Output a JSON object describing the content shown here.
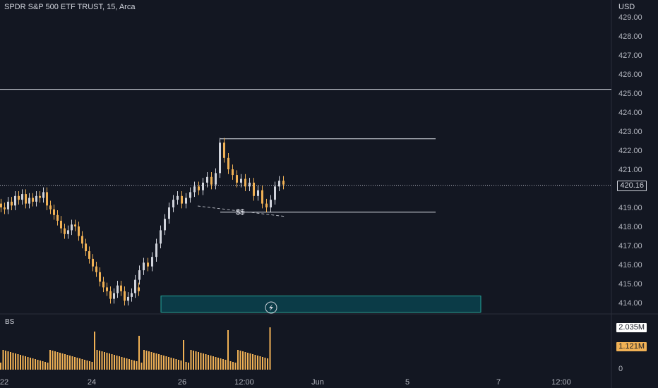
{
  "header": {
    "symbol_line": "SPDR S&P 500 ETF TRUST, 15, Arca",
    "currency": "USD"
  },
  "price_axis": {
    "ticks": [
      "429.00",
      "428.00",
      "427.00",
      "426.00",
      "425.00",
      "424.00",
      "423.00",
      "422.00",
      "421.00",
      "419.00",
      "418.00",
      "417.00",
      "416.00",
      "415.00",
      "414.00"
    ],
    "tick_values": [
      429,
      428,
      427,
      426,
      425,
      424,
      423,
      422,
      421,
      419,
      418,
      417,
      416,
      415,
      414
    ],
    "last_price_label": "420.16",
    "last_price": 420.16
  },
  "volume_axis": {
    "volume_label": "2.035M",
    "volume_label_value": 2.035,
    "avg_label": "1.121M",
    "avg_label_value": 1.121,
    "zero_label": "0"
  },
  "time_axis": {
    "ticks": [
      "22",
      "24",
      "26",
      "12:00",
      "Jun",
      "5",
      "7",
      "12:00"
    ]
  },
  "indicator": {
    "label": "BS"
  },
  "annotations": {
    "liquidity_label": "$$",
    "zone_icon": "lightning-icon",
    "horizontal_line_price": 425.2,
    "upper_line_price": 422.6,
    "lower_line_price": 418.75,
    "zone_top_price": 414.35,
    "zone_bottom_price": 413.5
  },
  "colors": {
    "background": "#131722",
    "bull": "#d1d4dc",
    "bear": "#f0b155",
    "zone_fill": "#0b3b47",
    "zone_border": "#26a69a",
    "vol_bar": "#f0b155"
  },
  "chart_data": {
    "type": "candlestick",
    "ylim": [
      413.5,
      430
    ],
    "series": [
      {
        "name": "price",
        "values": [
          419.0,
          418.9,
          419.3,
          419.1,
          419.6,
          419.4,
          419.7,
          419.2,
          419.5,
          419.3,
          419.6,
          419.5,
          419.8,
          419.1,
          418.9,
          418.6,
          418.3,
          417.9,
          417.6,
          417.8,
          418.1,
          418.0,
          417.5,
          417.1,
          416.7,
          416.3,
          415.9,
          415.6,
          415.1,
          414.8,
          414.6,
          414.2,
          414.5,
          414.9,
          414.6,
          414.1,
          414.3,
          414.5,
          414.8,
          414.6,
          415.2,
          415.7,
          416.1,
          415.9,
          416.4,
          417.1,
          417.8,
          418.4,
          419.0,
          419.4,
          419.6,
          419.2,
          419.5,
          419.8,
          420.1,
          419.9,
          420.3,
          420.6,
          420.2,
          420.8,
          422.4,
          421.6,
          421.0,
          420.7,
          420.3,
          420.5,
          420.1,
          420.3,
          419.6,
          419.9,
          419.2,
          419.0,
          419.4,
          420.1,
          420.4,
          420.2
        ]
      }
    ]
  }
}
